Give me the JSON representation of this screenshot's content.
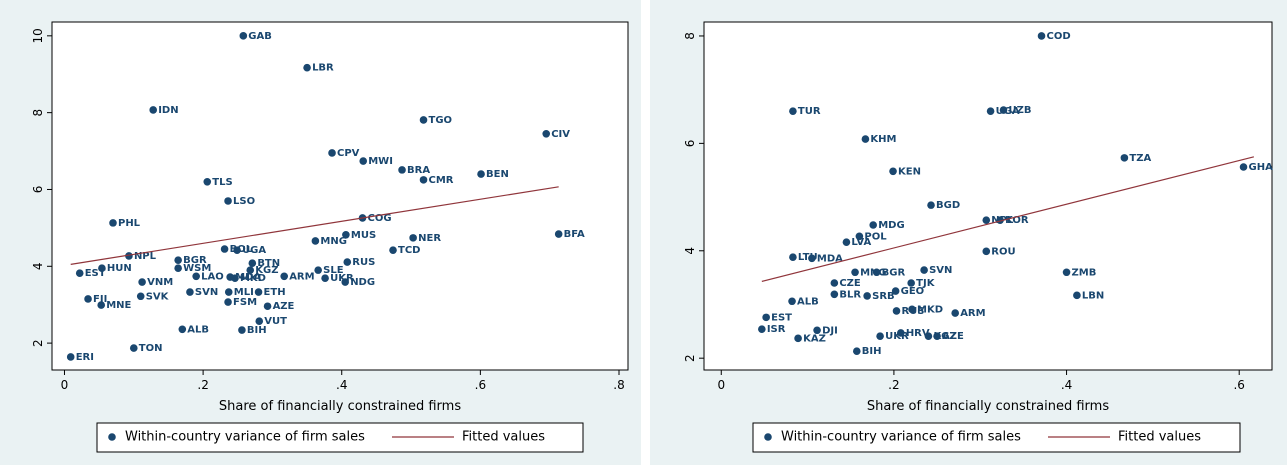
{
  "chart_data": [
    {
      "type": "scatter",
      "xlabel": "Share of financially constrained firms",
      "xlim": [
        -0.018,
        0.813
      ],
      "xticks": [
        0,
        {
          "value": 0.2,
          "label": ".2"
        },
        {
          "value": 0.4,
          "label": ".4"
        },
        {
          "value": 0.6,
          "label": ".6"
        },
        {
          "value": 0.8,
          "label": ".8"
        }
      ],
      "ylim": [
        1.3,
        10.36
      ],
      "yticks": [
        2,
        4,
        6,
        8,
        10
      ],
      "series": [
        {
          "name": "Within-country variance of firm sales",
          "color": "#1a476f",
          "labels": [
            "GAB",
            "LBR",
            "IDN",
            "TGO",
            "CIV",
            "CPV",
            "MWI",
            "BRA",
            "CMR",
            "BEN",
            "TLS",
            "LSO",
            "PHL",
            "COG",
            "MUS",
            "NER",
            "BFA",
            "MNG",
            "TCD",
            "BOL",
            "UGA",
            "NPL",
            "RUS",
            "BGR",
            "HUN",
            "EST",
            "BTN",
            "WSM",
            "SLE",
            "KGZ",
            "LAO",
            "MDA",
            "ARM",
            "MKD",
            "UKR",
            "NDG",
            "VNM",
            "SVK",
            "SVN",
            "MLI",
            "ETH",
            "FSM",
            "AZE",
            "FJI",
            "MNE",
            "VUT",
            "ALB",
            "BIH",
            "TON",
            "ERI"
          ],
          "x": [
            0.258,
            0.35,
            0.128,
            0.518,
            0.695,
            0.386,
            0.431,
            0.487,
            0.518,
            0.601,
            0.206,
            0.236,
            0.07,
            0.43,
            0.406,
            0.503,
            0.713,
            0.362,
            0.474,
            0.231,
            0.249,
            0.093,
            0.408,
            0.164,
            0.054,
            0.022,
            0.271,
            0.164,
            0.366,
            0.268,
            0.19,
            0.239,
            0.317,
            0.246,
            0.376,
            0.405,
            0.112,
            0.11,
            0.181,
            0.237,
            0.28,
            0.236,
            0.293,
            0.034,
            0.053,
            0.281,
            0.17,
            0.256,
            0.1,
            0.009
          ],
          "values": [
            10.0,
            9.17,
            8.07,
            7.81,
            7.45,
            6.95,
            6.74,
            6.51,
            6.25,
            6.4,
            6.2,
            5.7,
            5.13,
            5.26,
            4.82,
            4.74,
            4.84,
            4.66,
            4.42,
            4.45,
            4.42,
            4.27,
            4.11,
            4.16,
            3.95,
            3.82,
            4.08,
            3.95,
            3.9,
            3.9,
            3.74,
            3.72,
            3.74,
            3.69,
            3.69,
            3.59,
            3.59,
            3.22,
            3.33,
            3.33,
            3.33,
            3.07,
            2.96,
            3.15,
            2.99,
            2.57,
            2.36,
            2.34,
            1.87,
            1.64
          ]
        },
        {
          "name": "Fitted values",
          "color": "#90353b",
          "line": true,
          "x": [
            0.009,
            0.713
          ],
          "values": [
            4.05,
            6.07
          ]
        }
      ]
    },
    {
      "type": "scatter",
      "xlabel": "Share of financially constrained firms",
      "xlim": [
        -0.02,
        0.638
      ],
      "xticks": [
        0,
        {
          "value": 0.2,
          "label": ".2"
        },
        {
          "value": 0.4,
          "label": ".4"
        },
        {
          "value": 0.6,
          "label": ".6"
        }
      ],
      "ylim": [
        1.78,
        8.26
      ],
      "yticks": [
        2,
        4,
        6,
        8
      ],
      "series": [
        {
          "name": "Within-country variance of firm sales",
          "color": "#1a476f",
          "labels": [
            "COD",
            "TUR",
            "UGA",
            "UZB",
            "KHM",
            "TZA",
            "GHA",
            "KEN",
            "BGD",
            "NPL",
            "KOR",
            "MDG",
            "POL",
            "LVA",
            "ROU",
            "LTU",
            "MDA",
            "SVN",
            "ZMB",
            "MNG",
            "BGR",
            "CZE",
            "TJK",
            "GEO",
            "BLR",
            "SRB",
            "LBN",
            "ALB",
            "RUS",
            "MKD",
            "ARM",
            "EST",
            "ISR",
            "DJI",
            "KAZ",
            "UKR",
            "HRV",
            "KGZ",
            "AZE",
            "BIH"
          ],
          "x": [
            0.371,
            0.083,
            0.312,
            0.327,
            0.167,
            0.467,
            0.605,
            0.199,
            0.243,
            0.307,
            0.323,
            0.176,
            0.16,
            0.145,
            0.307,
            0.083,
            0.105,
            0.235,
            0.4,
            0.155,
            0.18,
            0.131,
            0.22,
            0.202,
            0.131,
            0.169,
            0.412,
            0.082,
            0.203,
            0.221,
            0.271,
            0.052,
            0.047,
            0.111,
            0.089,
            0.184,
            0.208,
            0.24,
            0.25,
            0.157
          ],
          "values": [
            8.0,
            6.6,
            6.6,
            6.62,
            6.08,
            5.73,
            5.56,
            5.48,
            4.85,
            4.57,
            4.57,
            4.48,
            4.27,
            4.16,
            3.99,
            3.88,
            3.86,
            3.64,
            3.6,
            3.6,
            3.6,
            3.4,
            3.4,
            3.25,
            3.19,
            3.16,
            3.17,
            3.06,
            2.88,
            2.91,
            2.84,
            2.76,
            2.54,
            2.52,
            2.37,
            2.41,
            2.47,
            2.41,
            2.41,
            2.13
          ]
        },
        {
          "name": "Fitted values",
          "color": "#90353b",
          "line": true,
          "x": [
            0.047,
            0.617
          ],
          "values": [
            3.43,
            5.75
          ]
        }
      ]
    }
  ]
}
